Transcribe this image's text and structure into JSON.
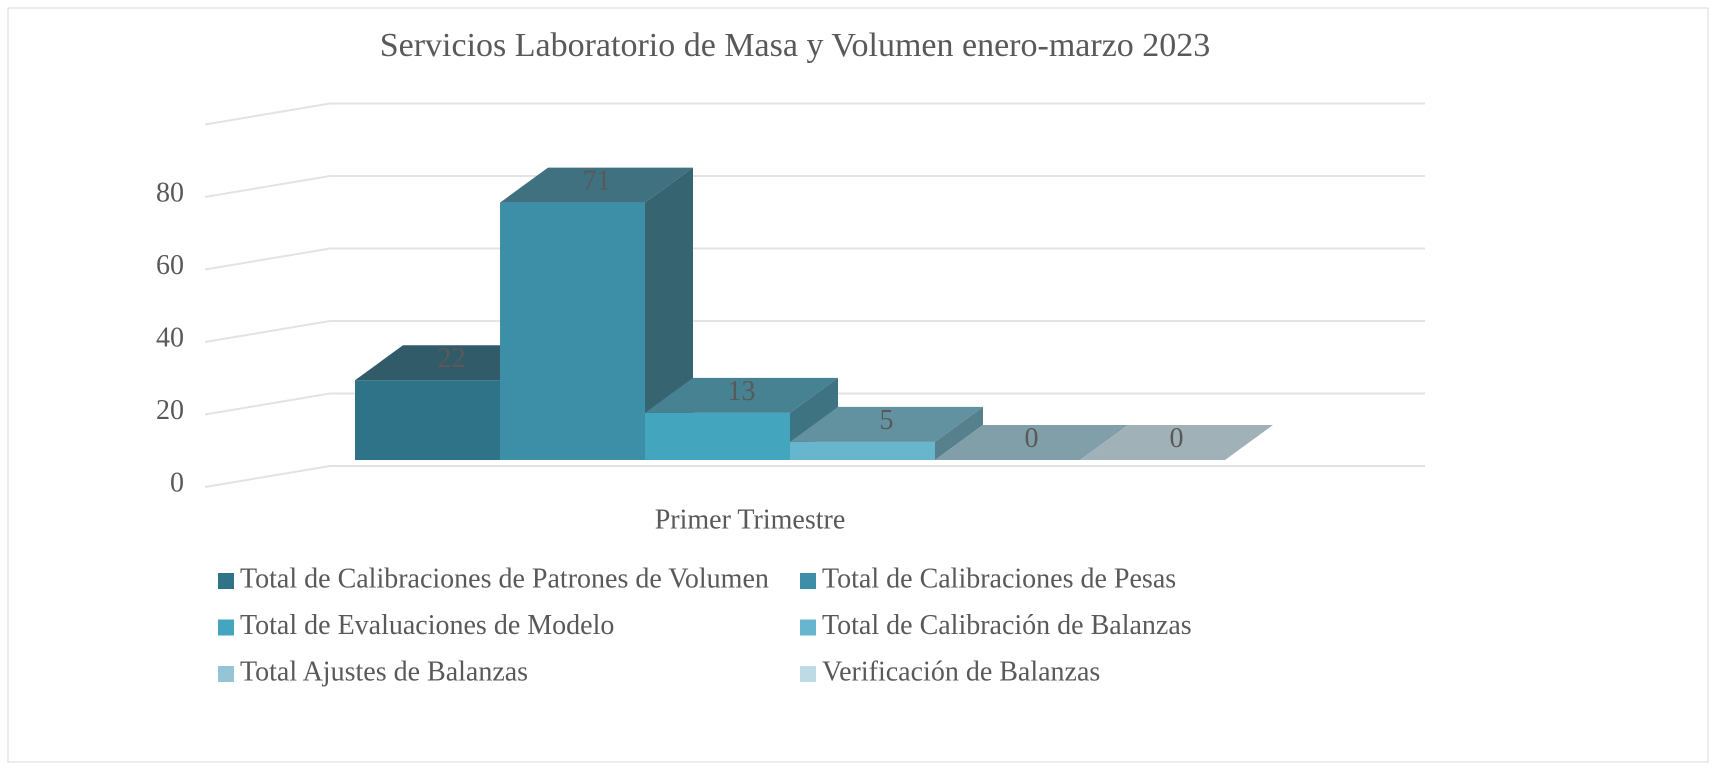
{
  "chart_data": {
    "type": "bar3d",
    "title": "Servicios  Laboratorio de Masa y Volumen enero-marzo 2023",
    "categories": [
      "Primer Trimestre"
    ],
    "series": [
      {
        "name": "Total de Calibraciones de Patrones de Volumen",
        "color": "#2e7388",
        "values": [
          22
        ]
      },
      {
        "name": "Total de Calibraciones de Pesas",
        "color": "#3d8fa8",
        "values": [
          71
        ]
      },
      {
        "name": "Total de Evaluaciones de Modelo",
        "color": "#44a5bf",
        "values": [
          13
        ]
      },
      {
        "name": "Total de Calibración de Balanzas",
        "color": "#68b6cd",
        "values": [
          5
        ]
      },
      {
        "name": "Total Ajustes de Balanzas",
        "color": "#94c4d5",
        "values": [
          0
        ]
      },
      {
        "name": "Verificación de Balanzas",
        "color": "#bedbe5",
        "values": [
          0
        ]
      }
    ],
    "ylim": [
      0,
      100
    ],
    "yticks": [
      0,
      20,
      40,
      60,
      80
    ],
    "grid": true,
    "legend": "bottom"
  }
}
